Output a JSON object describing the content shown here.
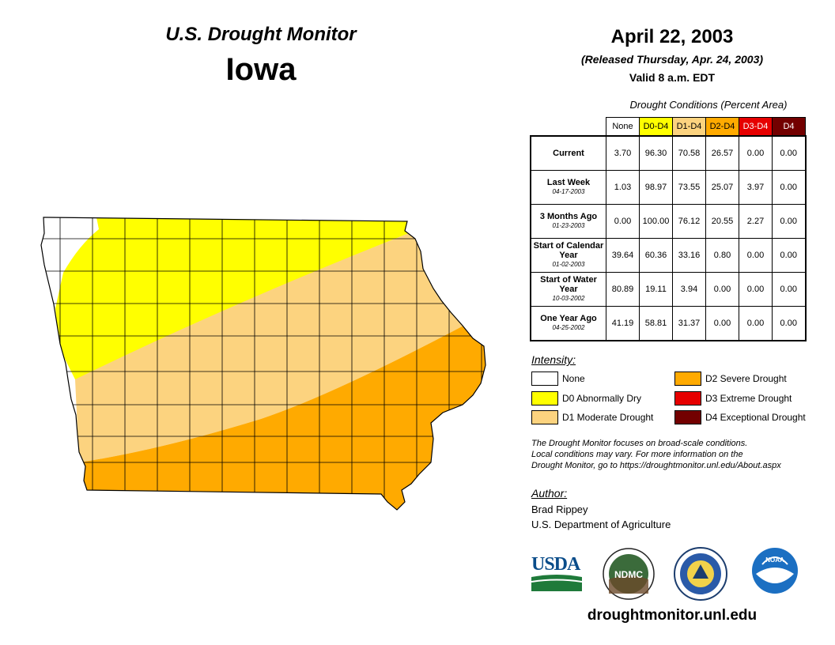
{
  "header": {
    "title": "U.S. Drought Monitor",
    "state": "Iowa",
    "date": "April 22, 2003",
    "released": "(Released Thursday, Apr. 24, 2003)",
    "valid": "Valid 8 a.m. EDT"
  },
  "table": {
    "caption": "Drought Conditions (Percent Area)",
    "columns": [
      {
        "label": "None",
        "color": "#ffffff",
        "text_color": "#000000"
      },
      {
        "label": "D0-D4",
        "color": "#ffff00",
        "text_color": "#000000"
      },
      {
        "label": "D1-D4",
        "color": "#fcd37f",
        "text_color": "#000000"
      },
      {
        "label": "D2-D4",
        "color": "#ffaa00",
        "text_color": "#000000"
      },
      {
        "label": "D3-D4",
        "color": "#e60000",
        "text_color": "#ffffff"
      },
      {
        "label": "D4",
        "color": "#730000",
        "text_color": "#ffffff"
      }
    ],
    "rows": [
      {
        "label": "Current",
        "date": "",
        "values": [
          "3.70",
          "96.30",
          "70.58",
          "26.57",
          "0.00",
          "0.00"
        ]
      },
      {
        "label": "Last Week",
        "date": "04-17-2003",
        "values": [
          "1.03",
          "98.97",
          "73.55",
          "25.07",
          "3.97",
          "0.00"
        ]
      },
      {
        "label": "3 Months Ago",
        "date": "01-23-2003",
        "values": [
          "0.00",
          "100.00",
          "76.12",
          "20.55",
          "2.27",
          "0.00"
        ]
      },
      {
        "label": "Start of Calendar Year",
        "date": "01-02-2003",
        "values": [
          "39.64",
          "60.36",
          "33.16",
          "0.80",
          "0.00",
          "0.00"
        ]
      },
      {
        "label": "Start of Water Year",
        "date": "10-03-2002",
        "values": [
          "80.89",
          "19.11",
          "3.94",
          "0.00",
          "0.00",
          "0.00"
        ]
      },
      {
        "label": "One Year Ago",
        "date": "04-25-2002",
        "values": [
          "41.19",
          "58.81",
          "31.37",
          "0.00",
          "0.00",
          "0.00"
        ]
      }
    ]
  },
  "legend": {
    "title": "Intensity:",
    "items": [
      {
        "label": "None",
        "color": "#ffffff"
      },
      {
        "label": "D0 Abnormally Dry",
        "color": "#ffff00"
      },
      {
        "label": "D1 Moderate Drought",
        "color": "#fcd37f"
      },
      {
        "label": "D2 Severe Drought",
        "color": "#ffaa00"
      },
      {
        "label": "D3 Extreme Drought",
        "color": "#e60000"
      },
      {
        "label": "D4 Exceptional Drought",
        "color": "#730000"
      }
    ]
  },
  "note": {
    "line1": "The Drought Monitor focuses on broad-scale conditions.",
    "line2": "Local conditions may vary. For more information on the",
    "line3": "Drought Monitor, go to https://droughtmonitor.unl.edu/About.aspx"
  },
  "author": {
    "label": "Author:",
    "name": "Brad Rippey",
    "org": "U.S. Department of Agriculture"
  },
  "logos": {
    "usda": "USDA",
    "ndmc": "NDMC",
    "noaa": "NOAA"
  },
  "website": "droughtmonitor.unl.edu"
}
